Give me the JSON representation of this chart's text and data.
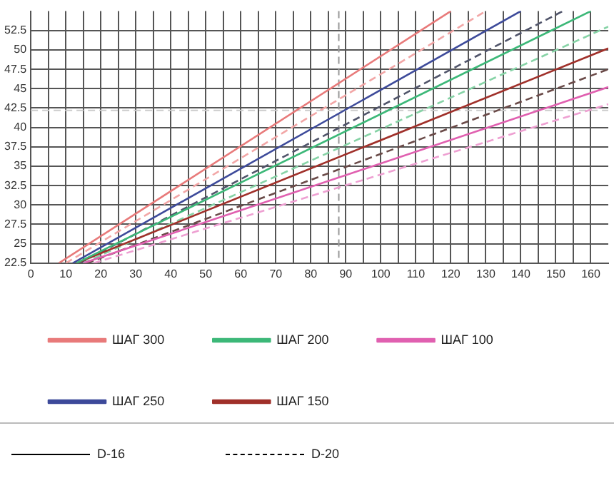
{
  "chart_data": {
    "type": "line",
    "xlim": [
      0,
      165
    ],
    "xticks": [
      0,
      {
        "value": 5,
        "label": null
      },
      10,
      {
        "value": 15,
        "label": null
      },
      20,
      {
        "value": 25,
        "label": null
      },
      30,
      {
        "value": 35,
        "label": null
      },
      40,
      {
        "value": 45,
        "label": null
      },
      50,
      {
        "value": 55,
        "label": null
      },
      60,
      {
        "value": 65,
        "label": null
      },
      70,
      {
        "value": 75,
        "label": null
      },
      80,
      {
        "value": 85,
        "label": null
      },
      90,
      {
        "value": 95,
        "label": null
      },
      100,
      {
        "value": 105,
        "label": null
      },
      110,
      {
        "value": 115,
        "label": null
      },
      120,
      {
        "value": 125,
        "label": null
      },
      130,
      {
        "value": 135,
        "label": null
      },
      140,
      {
        "value": 145,
        "label": null
      },
      150,
      {
        "value": 155,
        "label": null
      },
      160
    ],
    "ylim": [
      22.5,
      55
    ],
    "yticks": [
      22.5,
      25,
      27.5,
      30,
      32.5,
      35,
      37.5,
      40,
      42.5,
      45,
      47.5,
      50,
      52.5
    ],
    "grid": true,
    "legend": "bottom",
    "series": [
      {
        "name": "ШАГ 300",
        "color": "#e87a7a",
        "line_style": "solid",
        "x": [
          8,
          120
        ],
        "values": [
          22.5,
          55
        ]
      },
      {
        "name": "ШАГ 200",
        "color": "#3cb878",
        "line_style": "solid",
        "x": [
          13,
          160
        ],
        "values": [
          22.5,
          55
        ]
      },
      {
        "name": "ШАГ 100",
        "color": "#e060b0",
        "line_style": "solid",
        "x": [
          15,
          165
        ],
        "values": [
          22.5,
          45.2
        ]
      },
      {
        "name": "ШАГ 250",
        "color": "#3d4a9a",
        "line_style": "solid",
        "x": [
          12,
          140
        ],
        "values": [
          22.5,
          55
        ]
      },
      {
        "name": "ШАГ 150",
        "color": "#a0302a",
        "line_style": "solid",
        "x": [
          13,
          165
        ],
        "values": [
          22.5,
          50.2
        ]
      },
      {
        "color": "#f2a6a6",
        "line_style": "dashed",
        "x": [
          10,
          130
        ],
        "values": [
          22.5,
          55
        ]
      },
      {
        "color": "#86d3a6",
        "line_style": "dashed",
        "x": [
          15,
          165
        ],
        "values": [
          22.5,
          53
        ]
      },
      {
        "color": "#eea0d2",
        "line_style": "dashed",
        "x": [
          18,
          165
        ],
        "values": [
          22.5,
          43
        ]
      },
      {
        "color": "#50546a",
        "line_style": "dashed",
        "x": [
          14,
          152
        ],
        "values": [
          22.5,
          55
        ]
      },
      {
        "color": "#6a4a48",
        "line_style": "dashed",
        "x": [
          16,
          165
        ],
        "values": [
          22.5,
          47.5
        ]
      }
    ],
    "ref_lines": [
      {
        "axis": "y",
        "value": 42.2,
        "color": "#cccccc",
        "line_style": "dashed"
      },
      {
        "axis": "x",
        "value": 88,
        "color": "#999999",
        "line_style": "dashed"
      }
    ],
    "annotations": [
      "D-16",
      "D-20"
    ]
  }
}
